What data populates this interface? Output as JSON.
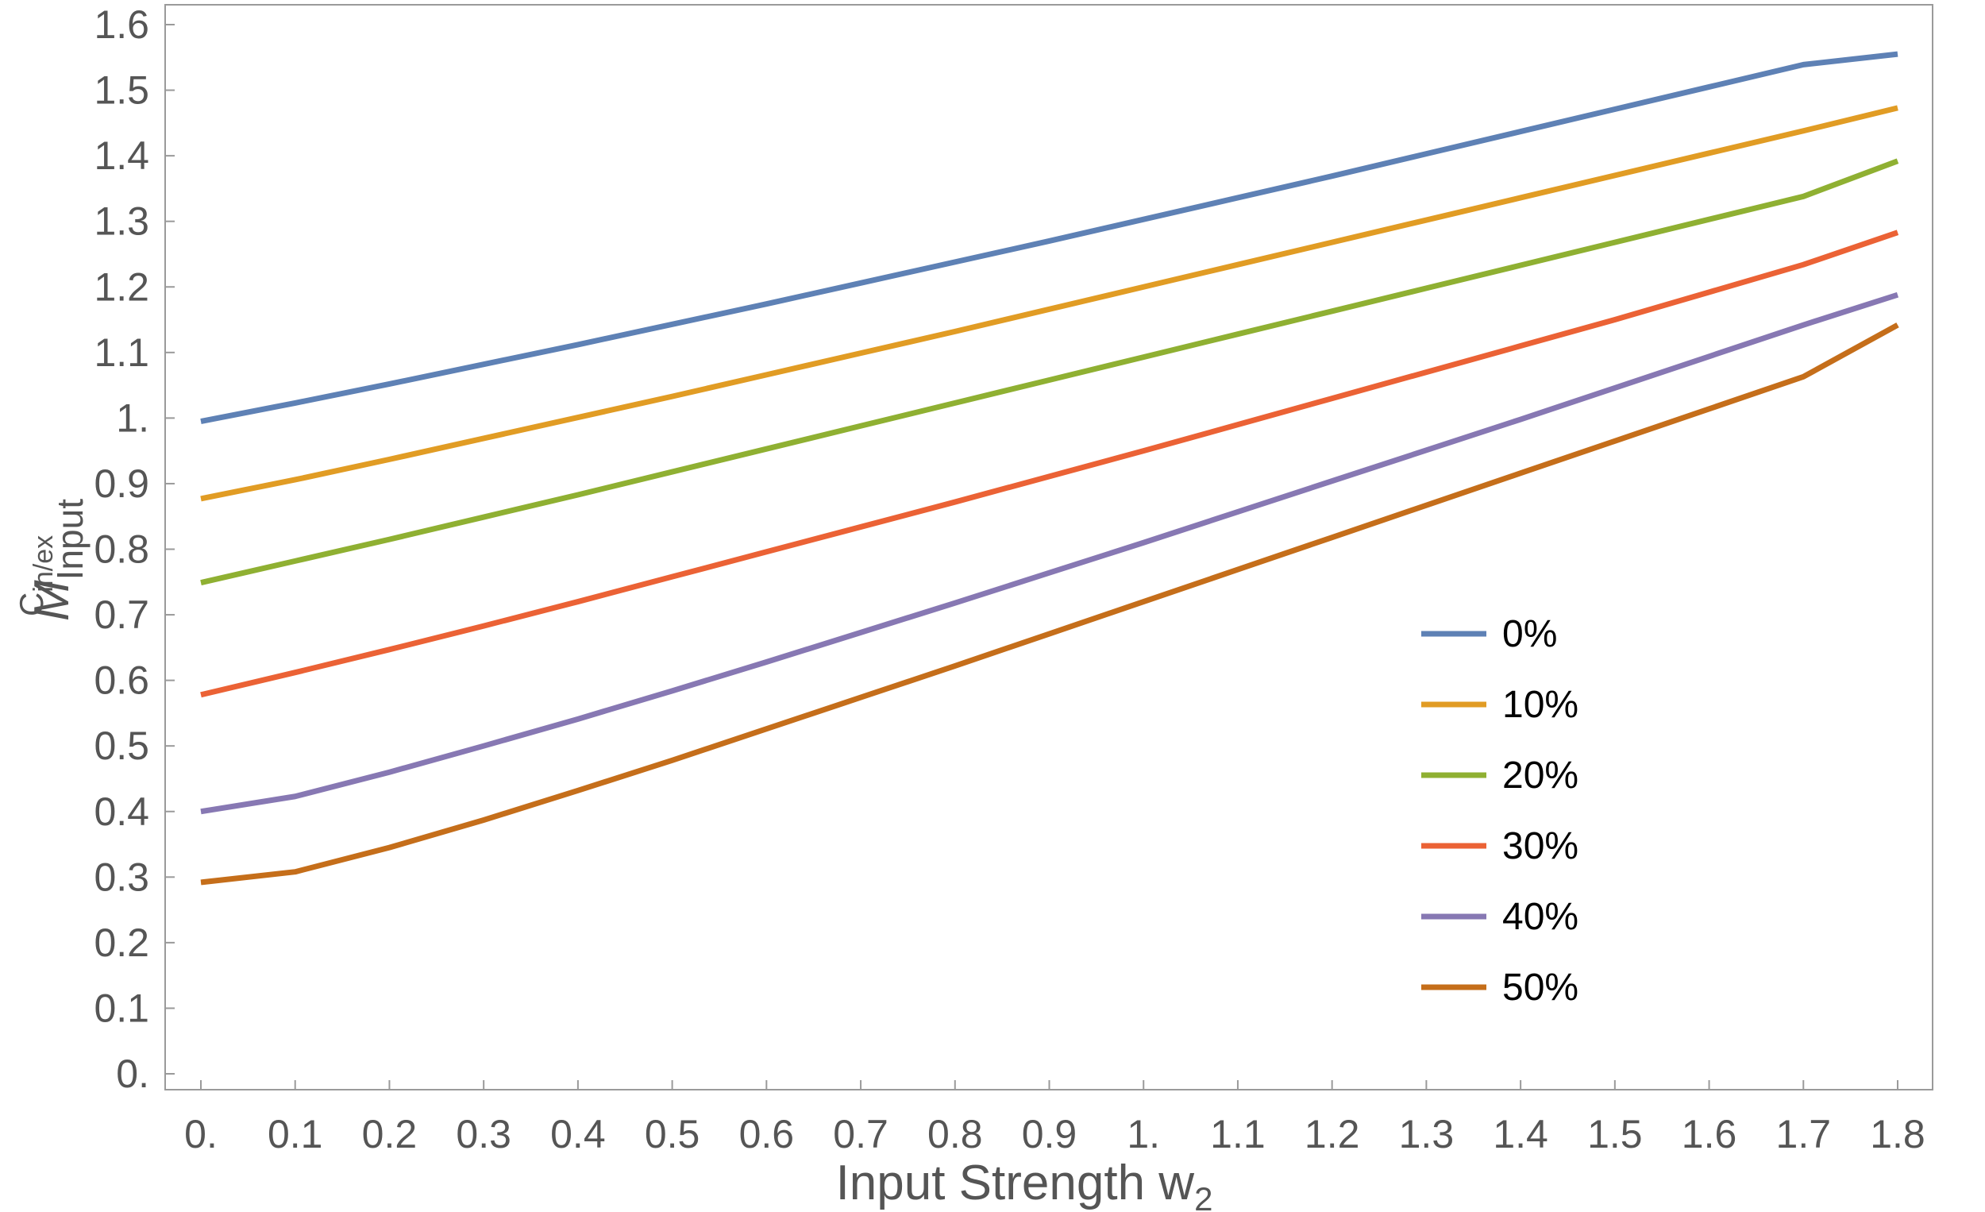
{
  "chart_data": {
    "type": "line",
    "title": "",
    "xlabel": "Input Strength w",
    "xlabel_subscript": "2",
    "ylabel": "M",
    "ylabel_subscript": "Input",
    "ylabel_superscript": "C",
    "ylabel_superscript_sub": "in/ex",
    "xlim": [
      0,
      1.8
    ],
    "ylim": [
      0,
      1.6
    ],
    "xticks": [
      0,
      0.1,
      0.2,
      0.3,
      0.4,
      0.5,
      0.6,
      0.7,
      0.8,
      0.9,
      1.0,
      1.1,
      1.2,
      1.3,
      1.4,
      1.5,
      1.6,
      1.7,
      1.8
    ],
    "xtick_labels": [
      "0.",
      "0.1",
      "0.2",
      "0.3",
      "0.4",
      "0.5",
      "0.6",
      "0.7",
      "0.8",
      "0.9",
      "1.",
      "1.1",
      "1.2",
      "1.3",
      "1.4",
      "1.5",
      "1.6",
      "1.7",
      "1.8"
    ],
    "yticks": [
      0,
      0.1,
      0.2,
      0.3,
      0.4,
      0.5,
      0.6,
      0.7,
      0.8,
      0.9,
      1.0,
      1.1,
      1.2,
      1.3,
      1.4,
      1.5,
      1.6
    ],
    "ytick_labels": [
      "0.",
      "0.1",
      "0.2",
      "0.3",
      "0.4",
      "0.5",
      "0.6",
      "0.7",
      "0.8",
      "0.9",
      "1.",
      "1.1",
      "1.2",
      "1.3",
      "1.4",
      "1.5",
      "1.6"
    ],
    "grid": false,
    "legend_position": "center-right",
    "x": [
      0,
      0.1,
      0.2,
      0.3,
      0.4,
      0.5,
      0.6,
      0.7,
      0.8,
      0.9,
      1.0,
      1.1,
      1.2,
      1.3,
      1.4,
      1.5,
      1.6,
      1.7,
      1.8
    ],
    "series": [
      {
        "name": "0%",
        "color": "#5e81b5",
        "values": [
          0.995,
          1.023,
          1.052,
          1.082,
          1.112,
          1.143,
          1.174,
          1.206,
          1.238,
          1.27,
          1.303,
          1.336,
          1.369,
          1.403,
          1.437,
          1.471,
          1.505,
          1.539,
          1.555
        ]
      },
      {
        "name": "10%",
        "color": "#e19c24",
        "values": [
          0.877,
          0.906,
          0.937,
          0.969,
          1.001,
          1.033,
          1.066,
          1.099,
          1.132,
          1.166,
          1.2,
          1.234,
          1.268,
          1.302,
          1.336,
          1.37,
          1.404,
          1.438,
          1.473
        ]
      },
      {
        "name": "20%",
        "color": "#8fb032",
        "values": [
          0.749,
          0.782,
          0.815,
          0.849,
          0.883,
          0.918,
          0.953,
          0.988,
          1.023,
          1.058,
          1.093,
          1.128,
          1.163,
          1.198,
          1.233,
          1.268,
          1.303,
          1.338,
          1.392
        ]
      },
      {
        "name": "30%",
        "color": "#eb6235",
        "values": [
          0.578,
          0.612,
          0.647,
          0.683,
          0.72,
          0.758,
          0.796,
          0.834,
          0.872,
          0.911,
          0.95,
          0.99,
          1.03,
          1.07,
          1.11,
          1.15,
          1.192,
          1.234,
          1.283
        ]
      },
      {
        "name": "40%",
        "color": "#8778b3",
        "values": [
          0.4,
          0.423,
          0.46,
          0.5,
          0.541,
          0.584,
          0.628,
          0.673,
          0.718,
          0.764,
          0.81,
          0.857,
          0.904,
          0.951,
          0.998,
          1.046,
          1.094,
          1.142,
          1.188
        ]
      },
      {
        "name": "50%",
        "color": "#c56e1a",
        "values": [
          0.292,
          0.308,
          0.345,
          0.387,
          0.432,
          0.478,
          0.526,
          0.574,
          0.622,
          0.671,
          0.72,
          0.769,
          0.818,
          0.867,
          0.916,
          0.965,
          1.014,
          1.063,
          1.142
        ]
      }
    ]
  }
}
